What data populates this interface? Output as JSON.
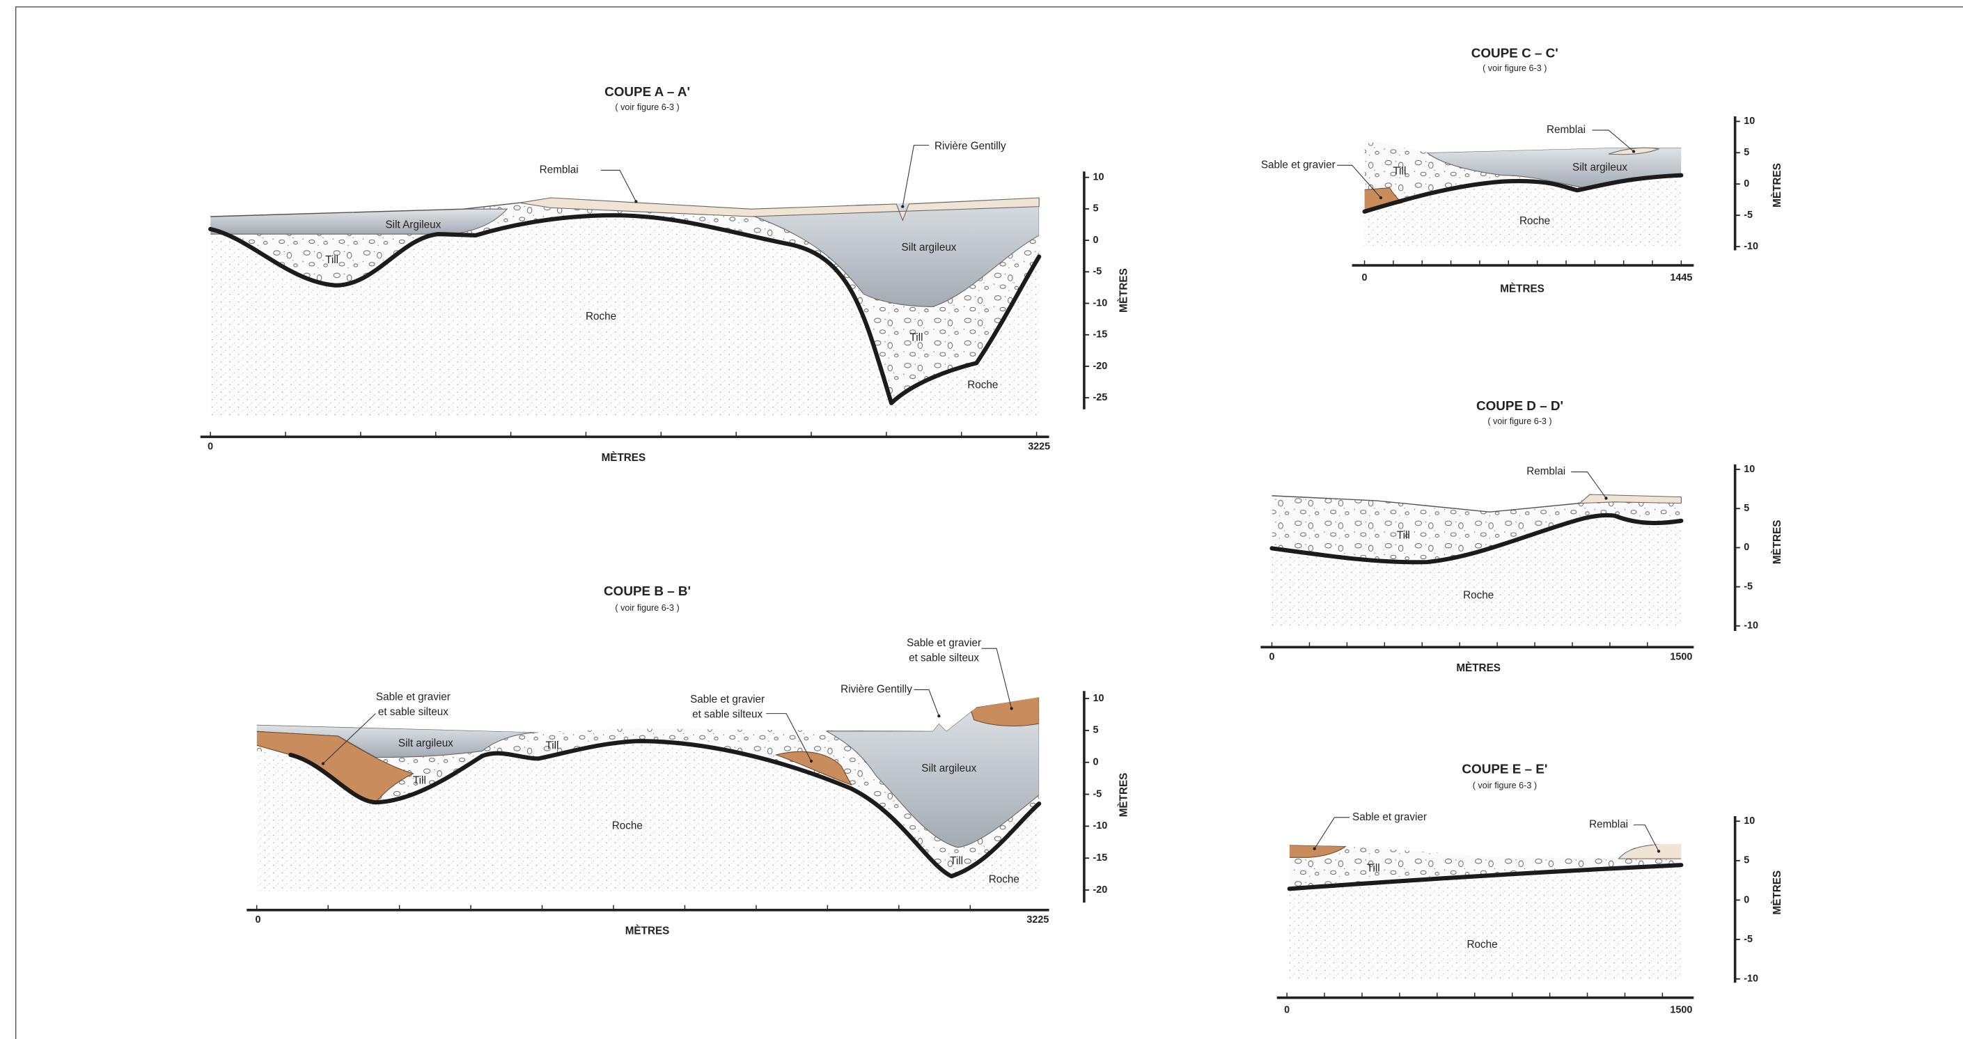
{
  "sections": [
    {
      "title": "COUPE A – A'",
      "subtitle": "( voir figure 6-3 )",
      "y_axis_title": "MÈTRES",
      "y_ticks": [
        10,
        5,
        0,
        -5,
        -10,
        -15,
        -20,
        -25
      ],
      "x_start": 0,
      "x_end": 3225,
      "x_axis_title": "MÈTRES",
      "labels": [
        "Remblai",
        "Rivière Gentilly",
        "Silt Argileux",
        "Till",
        "Silt argileux",
        "Roche",
        "Till",
        "Roche"
      ]
    },
    {
      "title": "COUPE B – B'",
      "subtitle": "( voir figure 6-3 )",
      "y_axis_title": "MÈTRES",
      "y_ticks": [
        10,
        5,
        0,
        -5,
        -10,
        -15,
        -20
      ],
      "x_start": 0,
      "x_end": 3225,
      "x_axis_title": "MÈTRES",
      "labels": [
        "Sable et gravier",
        "et sable silteux",
        "Sable et gravier",
        "et sable silteux",
        "Sable et gravier",
        "et sable silteux",
        "Rivière Gentilly",
        "Silt argileux",
        "Till",
        "Till",
        "Silt argileux",
        "Roche",
        "Till",
        "Roche"
      ]
    },
    {
      "title": "COUPE C – C'",
      "subtitle": "( voir figure 6-3 )",
      "y_axis_title": "MÈTRES",
      "y_ticks": [
        10,
        5,
        0,
        -5,
        -10
      ],
      "x_start": 0,
      "x_end": 1445,
      "x_axis_title": "MÈTRES",
      "labels": [
        "Remblai",
        "Sable et gravier",
        "Till",
        "Silt argileux",
        "Roche"
      ]
    },
    {
      "title": "COUPE D – D'",
      "subtitle": "( voir figure 6-3 )",
      "y_axis_title": "MÈTRES",
      "y_ticks": [
        10,
        5,
        0,
        -5,
        -10
      ],
      "x_start": 0,
      "x_end": 1500,
      "x_axis_title": "MÈTRES",
      "labels": [
        "Remblai",
        "Till",
        "Roche"
      ]
    },
    {
      "title": "COUPE E – E'",
      "subtitle": "( voir figure 6-3 )",
      "y_axis_title": "MÈTRES",
      "y_ticks": [
        10,
        5,
        0,
        -5,
        -10
      ],
      "x_start": 0,
      "x_end": 1500,
      "labels": [
        "Sable et gravier",
        "Remblai",
        "Till",
        "Roche"
      ]
    }
  ]
}
